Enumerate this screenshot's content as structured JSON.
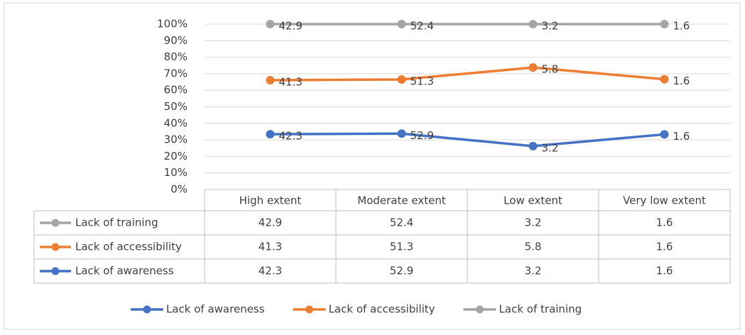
{
  "chart_data": {
    "type": "line",
    "stacking": "percent",
    "categories": [
      "High extent",
      "Moderate extent",
      "Low extent",
      "Very low extent"
    ],
    "series": [
      {
        "name": "Lack of awareness",
        "color": "#4472c4",
        "values": [
          42.3,
          52.9,
          3.2,
          1.6
        ]
      },
      {
        "name": "Lack of accessibility",
        "color": "#ed7d31",
        "values": [
          41.3,
          51.3,
          5.8,
          1.6
        ]
      },
      {
        "name": "Lack of training",
        "color": "#a5a5a5",
        "values": [
          42.9,
          52.4,
          3.2,
          1.6
        ]
      }
    ],
    "ylim": [
      0,
      100
    ],
    "yticks": [
      {
        "value": 0,
        "label": "0%"
      },
      {
        "value": 10,
        "label": "10%"
      },
      {
        "value": 20,
        "label": "20%"
      },
      {
        "value": 30,
        "label": "30%"
      },
      {
        "value": 40,
        "label": "40%"
      },
      {
        "value": 50,
        "label": "50%"
      },
      {
        "value": 60,
        "label": "60%"
      },
      {
        "value": 70,
        "label": "70%"
      },
      {
        "value": 80,
        "label": "80%"
      },
      {
        "value": 90,
        "label": "90%"
      },
      {
        "value": 100,
        "label": "100%"
      }
    ],
    "grid": true,
    "legend": "bottom",
    "data_table": true
  }
}
